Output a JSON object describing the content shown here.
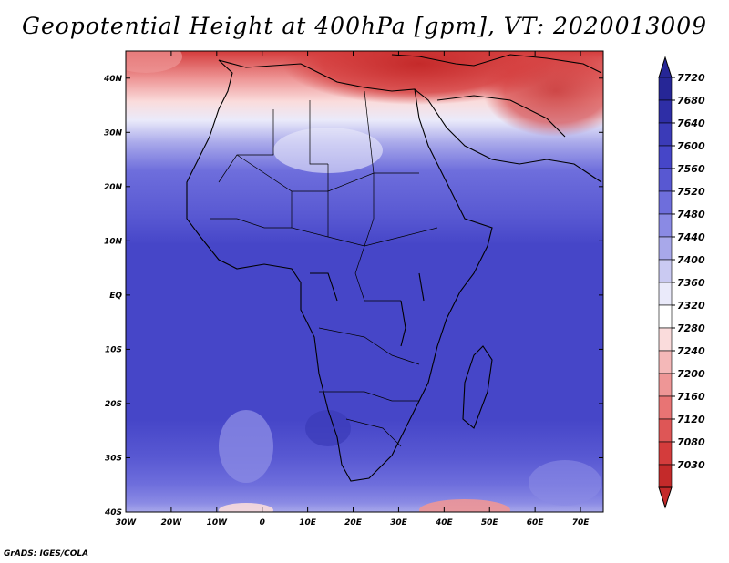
{
  "title": "Geopotential Height at 400hPa [gpm], VT: 2020013009",
  "credit": "GrADS: IGES/COLA",
  "map": {
    "lon_range": [
      -30,
      75
    ],
    "lat_range": [
      -40,
      45
    ],
    "x_ticks": [
      "30W",
      "20W",
      "10W",
      "0",
      "10E",
      "20E",
      "30E",
      "40E",
      "50E",
      "60E",
      "70E"
    ],
    "y_ticks": [
      "40N",
      "30N",
      "20N",
      "10N",
      "EQ",
      "10S",
      "20S",
      "30S",
      "40S"
    ]
  },
  "colorbar": {
    "labels": [
      "7720",
      "7680",
      "7640",
      "7600",
      "7560",
      "7520",
      "7480",
      "7440",
      "7400",
      "7360",
      "7320",
      "7280",
      "7240",
      "7200",
      "7160",
      "7120",
      "7080",
      "7030"
    ],
    "colors": [
      "#262696",
      "#2e2ea6",
      "#3b3bb8",
      "#4646c8",
      "#5858d2",
      "#6e6edc",
      "#8a8ae4",
      "#a8a8ea",
      "#cacaf2",
      "#eaeafa",
      "#ffffff",
      "#fadcdc",
      "#f4b8b8",
      "#ee9696",
      "#e87474",
      "#de5656",
      "#d43c3c",
      "#c42a2a"
    ]
  }
}
